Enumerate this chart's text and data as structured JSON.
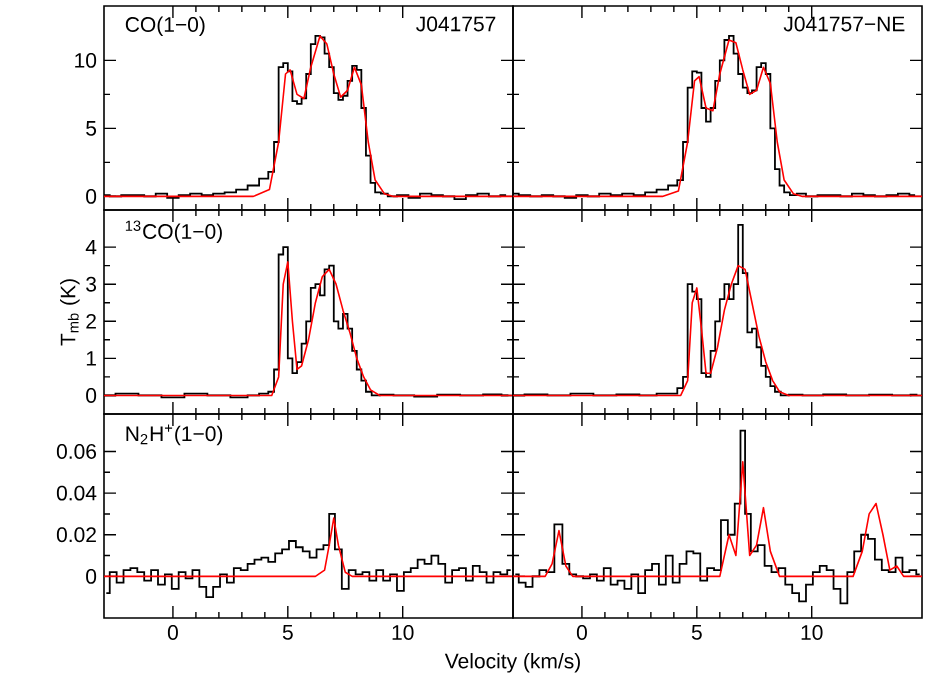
{
  "chart_data": [
    {
      "type": "step",
      "title": "J041757",
      "annotations": [
        "CO(1−0)"
      ],
      "xlim": [
        -3,
        14.8
      ],
      "xticks": [
        0,
        5,
        10
      ],
      "ylim": [
        -1,
        14
      ],
      "yticks": [
        0,
        5,
        10
      ],
      "tick_labels": "y",
      "series": [
        {
          "color": "#000000",
          "x": [
            -3,
            -2.5,
            -2,
            -1.5,
            -1,
            -0.5,
            0,
            0.5,
            1,
            1.5,
            2,
            2.5,
            3,
            3.5,
            4,
            4.3,
            4.5,
            4.7,
            4.9,
            5.1,
            5.3,
            5.5,
            5.7,
            5.9,
            6.1,
            6.3,
            6.5,
            6.7,
            6.9,
            7.1,
            7.3,
            7.5,
            7.7,
            7.9,
            8.1,
            8.3,
            8.5,
            8.7,
            8.9,
            9.2,
            9.5,
            10,
            10.5,
            11,
            11.5,
            12,
            12.5,
            13,
            13.5,
            14,
            14.5
          ],
          "values": [
            0.1,
            0,
            0.1,
            0.1,
            0,
            0.2,
            -0.1,
            0.1,
            0.2,
            0.1,
            0.2,
            0.3,
            0.5,
            0.8,
            1.3,
            1.8,
            4,
            9.5,
            9.8,
            9.2,
            7,
            6.8,
            7.2,
            9,
            11.2,
            11.8,
            11.7,
            10.5,
            9.5,
            7.6,
            7.1,
            7.4,
            8.5,
            9.6,
            9.3,
            6.5,
            3,
            1,
            0.3,
            0.2,
            0,
            0.1,
            -0.1,
            0.2,
            0.1,
            0,
            -0.2,
            0.1,
            0.2,
            0,
            0.1
          ]
        },
        {
          "type": "line",
          "color": "#ff0000",
          "x": [
            -3,
            3.5,
            4.2,
            4.6,
            4.9,
            5.1,
            5.4,
            5.7,
            6.0,
            6.4,
            6.7,
            7.0,
            7.3,
            7.6,
            7.9,
            8.2,
            8.5,
            8.8,
            9.2,
            9.6,
            14.8
          ],
          "values": [
            0,
            0,
            0.5,
            4,
            9,
            9.3,
            7.5,
            7.2,
            9.5,
            11.8,
            11.2,
            9,
            7.3,
            7.8,
            9.5,
            8.2,
            4,
            1.2,
            0.2,
            0,
            0
          ]
        }
      ]
    },
    {
      "type": "step",
      "title": "J041757−NE",
      "xlim": [
        -3,
        14.8
      ],
      "xticks": [
        0,
        5,
        10
      ],
      "ylim": [
        -1,
        14
      ],
      "yticks": [
        0,
        5,
        10
      ],
      "tick_labels": false,
      "series": [
        {
          "color": "#000000",
          "x": [
            -3,
            -2.5,
            -2,
            -1.5,
            -1,
            -0.5,
            0,
            0.5,
            1,
            1.5,
            2,
            2.5,
            3,
            3.5,
            4,
            4.3,
            4.5,
            4.7,
            4.9,
            5.1,
            5.3,
            5.5,
            5.7,
            5.9,
            6.1,
            6.3,
            6.5,
            6.7,
            6.9,
            7.1,
            7.3,
            7.5,
            7.7,
            7.9,
            8.1,
            8.3,
            8.5,
            8.7,
            8.9,
            9.2,
            9.5,
            10,
            10.5,
            11,
            11.5,
            12,
            12.5,
            13,
            13.5,
            14,
            14.5
          ],
          "values": [
            0.2,
            0.1,
            0,
            0.1,
            0,
            -0.1,
            0.1,
            0,
            0.2,
            0.1,
            0.2,
            0.1,
            0.3,
            0.5,
            0.8,
            1.2,
            4,
            8,
            9.2,
            9.1,
            6.5,
            5.5,
            6.5,
            8.5,
            10,
            11.5,
            11.8,
            10.5,
            9,
            8,
            7.6,
            7.8,
            9.5,
            9.8,
            9,
            5,
            2,
            0.8,
            0.3,
            0.1,
            0.2,
            0,
            0.1,
            0.1,
            0,
            0.2,
            0.1,
            0,
            0.1,
            0.2,
            0.1
          ]
        },
        {
          "type": "line",
          "color": "#ff0000",
          "x": [
            -3,
            3.5,
            4.2,
            4.6,
            4.9,
            5.1,
            5.4,
            5.7,
            6.0,
            6.4,
            6.7,
            7.0,
            7.3,
            7.6,
            7.9,
            8.2,
            8.5,
            8.8,
            9.2,
            9.6,
            14.8
          ],
          "values": [
            0,
            0,
            0.4,
            4,
            8.5,
            8.8,
            6.5,
            6.3,
            9,
            11.5,
            11.3,
            9.3,
            7.5,
            7.8,
            9.5,
            8.3,
            4,
            1.2,
            0.2,
            0,
            0
          ]
        }
      ]
    },
    {
      "type": "step",
      "annotations": [
        "$^{13}$CO(1−0)"
      ],
      "ylabel": "T$_{mb}$ (K)",
      "xlim": [
        -3,
        14.8
      ],
      "xticks": [
        0,
        5,
        10
      ],
      "ylim": [
        -0.5,
        5
      ],
      "yticks": [
        0,
        1,
        2,
        3,
        4
      ],
      "tick_labels": "y",
      "series": [
        {
          "color": "#000000",
          "x": [
            -3,
            -2,
            -1,
            0,
            1,
            2,
            3,
            3.5,
            4,
            4.3,
            4.5,
            4.7,
            4.9,
            5.1,
            5.3,
            5.5,
            5.7,
            5.9,
            6.1,
            6.3,
            6.5,
            6.7,
            6.9,
            7.1,
            7.3,
            7.5,
            7.7,
            7.9,
            8.1,
            8.3,
            8.5,
            8.8,
            9.2,
            10,
            11,
            12,
            13,
            14,
            14.6
          ],
          "values": [
            0,
            0.05,
            0,
            -0.05,
            0.05,
            0,
            -0.05,
            0,
            0.05,
            0.1,
            0.7,
            3.8,
            4,
            1,
            0.6,
            0.9,
            1.4,
            2,
            2.9,
            3,
            2.7,
            3.4,
            3.5,
            2,
            1.8,
            2.2,
            1.8,
            1.2,
            0.7,
            0.4,
            0.1,
            0,
            0.02,
            0,
            -0.03,
            0.02,
            0,
            0.03,
            0
          ]
        },
        {
          "type": "line",
          "color": "#ff0000",
          "x": [
            -3,
            4.3,
            4.6,
            4.8,
            5.0,
            5.2,
            5.4,
            5.6,
            5.9,
            6.2,
            6.5,
            6.8,
            7.1,
            7.4,
            7.7,
            8.0,
            8.3,
            8.6,
            9.0,
            14.8
          ],
          "values": [
            0,
            0,
            0.5,
            3,
            3.6,
            2,
            0.7,
            0.8,
            1.5,
            2.5,
            3.2,
            3.4,
            3.0,
            2.3,
            1.7,
            1.0,
            0.5,
            0.15,
            0,
            0
          ]
        }
      ]
    },
    {
      "type": "step",
      "xlim": [
        -3,
        14.8
      ],
      "xticks": [
        0,
        5,
        10
      ],
      "ylim": [
        -0.5,
        5
      ],
      "yticks": [
        0,
        1,
        2,
        3,
        4
      ],
      "tick_labels": false,
      "series": [
        {
          "color": "#000000",
          "x": [
            -3,
            -2,
            -1,
            0,
            1,
            2,
            3,
            3.5,
            4,
            4.3,
            4.5,
            4.7,
            4.9,
            5.1,
            5.3,
            5.5,
            5.7,
            5.9,
            6.1,
            6.3,
            6.5,
            6.7,
            6.9,
            7.1,
            7.3,
            7.5,
            7.7,
            7.9,
            8.1,
            8.3,
            8.5,
            8.8,
            9.2,
            10,
            11,
            12,
            13,
            14,
            14.6
          ],
          "values": [
            0,
            0.03,
            0,
            0.05,
            0,
            0.03,
            0,
            0.05,
            0.05,
            0.2,
            0.5,
            3,
            2.8,
            2.6,
            0.6,
            0.5,
            1.2,
            2,
            2.6,
            3,
            2.6,
            3,
            4.6,
            3.3,
            1.7,
            1.8,
            1.3,
            0.8,
            0.5,
            0.25,
            0.1,
            0,
            0.02,
            0,
            0.03,
            0,
            0.02,
            0,
            0.02
          ]
        },
        {
          "type": "line",
          "color": "#ff0000",
          "x": [
            -3,
            4.3,
            4.6,
            4.8,
            5.0,
            5.2,
            5.4,
            5.6,
            5.9,
            6.2,
            6.5,
            6.8,
            7.1,
            7.4,
            7.7,
            8.0,
            8.3,
            8.6,
            9.0,
            14.8
          ],
          "values": [
            0,
            0,
            0.4,
            2.5,
            2.9,
            1.8,
            0.6,
            0.6,
            1.3,
            2.3,
            3.0,
            3.5,
            3.4,
            2.5,
            1.6,
            0.9,
            0.4,
            0.1,
            0,
            0
          ]
        }
      ]
    },
    {
      "type": "step",
      "annotations": [
        "N$_{2}$H$^{+}$(1−0)"
      ],
      "xlabel": "Velocity (km/s)",
      "xlim": [
        -3,
        14.8
      ],
      "xticks": [
        0,
        5,
        10
      ],
      "ylim": [
        -0.02,
        0.078
      ],
      "yticks": [
        0,
        0.02,
        0.04,
        0.06
      ],
      "series": [
        {
          "color": "#000000",
          "x": [
            -2.9,
            -2.6,
            -2.3,
            -2.0,
            -1.7,
            -1.4,
            -1.1,
            -0.8,
            -0.5,
            -0.2,
            0.1,
            0.4,
            0.7,
            1.0,
            1.3,
            1.6,
            1.9,
            2.2,
            2.5,
            2.8,
            3.1,
            3.4,
            3.7,
            4.0,
            4.3,
            4.6,
            4.9,
            5.2,
            5.5,
            5.8,
            6.1,
            6.4,
            6.7,
            6.9,
            7.2,
            7.5,
            7.8,
            8.1,
            8.4,
            8.7,
            9.0,
            9.3,
            9.6,
            9.9,
            10.2,
            10.5,
            10.8,
            11.1,
            11.4,
            11.7,
            12.0,
            12.3,
            12.6,
            12.9,
            13.2,
            13.5,
            13.8,
            14.1,
            14.4,
            14.7
          ],
          "values": [
            -0.008,
            0.002,
            -0.003,
            0.003,
            0.004,
            0.002,
            -0.002,
            0.003,
            -0.004,
            0.001,
            -0.006,
            0.002,
            -0.001,
            0.003,
            -0.005,
            -0.01,
            -0.005,
            0.001,
            -0.003,
            0.004,
            0.003,
            0.006,
            0.008,
            0.009,
            0.007,
            0.011,
            0.013,
            0.017,
            0.014,
            0.012,
            0.009,
            0.013,
            0.015,
            0.03,
            0.013,
            -0.006,
            0.003,
            0.001,
            0.002,
            -0.002,
            0.003,
            -0.002,
            0.001,
            -0.007,
            0.002,
            0.004,
            0.008,
            0.006,
            0.01,
            0.006,
            -0.003,
            0.003,
            0.004,
            -0.002,
            0.005,
            0.002,
            -0.003,
            0.002,
            0.001,
            0.003
          ]
        },
        {
          "type": "line",
          "color": "#ff0000",
          "x": [
            -3,
            6.2,
            6.6,
            6.8,
            7.0,
            7.2,
            7.5,
            7.8,
            14.8
          ],
          "values": [
            0,
            0,
            0.003,
            0.015,
            0.028,
            0.015,
            0.002,
            0,
            0
          ]
        }
      ]
    },
    {
      "type": "step",
      "xlim": [
        -3,
        14.8
      ],
      "xticks": [
        0,
        5,
        10
      ],
      "ylim": [
        -0.02,
        0.078
      ],
      "yticks": [
        0,
        0.02,
        0.04,
        0.06
      ],
      "tick_labels": "x",
      "series": [
        {
          "color": "#000000",
          "x": [
            -2.9,
            -2.6,
            -2.3,
            -2.0,
            -1.7,
            -1.4,
            -1.0,
            -0.7,
            -0.4,
            -0.1,
            0.2,
            0.5,
            0.8,
            1.1,
            1.4,
            1.7,
            2.0,
            2.3,
            2.6,
            2.9,
            3.2,
            3.5,
            3.8,
            4.1,
            4.4,
            4.7,
            5.0,
            5.3,
            5.6,
            5.9,
            6.2,
            6.5,
            6.8,
            7.0,
            7.2,
            7.5,
            7.8,
            8.1,
            8.4,
            8.7,
            9.0,
            9.3,
            9.6,
            9.9,
            10.2,
            10.5,
            10.8,
            11.1,
            11.4,
            11.7,
            12.0,
            12.3,
            12.6,
            12.9,
            13.2,
            13.5,
            13.8,
            14.1,
            14.4,
            14.7
          ],
          "values": [
            0.001,
            -0.003,
            -0.005,
            0,
            0.003,
            0.002,
            0.025,
            0.006,
            0.001,
            0,
            -0.001,
            0.001,
            -0.002,
            0.004,
            -0.004,
            -0.002,
            -0.006,
            0.001,
            -0.008,
            0.003,
            0.006,
            -0.004,
            0.01,
            -0.003,
            0.006,
            0.012,
            0.011,
            -0.002,
            0.004,
            0.003,
            0.027,
            0.02,
            0.035,
            0.07,
            0.03,
            0.012,
            0.015,
            0.005,
            0.002,
            0.004,
            -0.004,
            -0.008,
            -0.012,
            -0.004,
            0.002,
            0.005,
            0.003,
            -0.006,
            -0.013,
            0.002,
            0.012,
            0.02,
            0.018,
            0.008,
            0.003,
            0.002,
            0.009,
            0.002,
            0.003,
            0.001
          ]
        },
        {
          "type": "line",
          "color": "#ff0000",
          "x": [
            -3,
            -1.6,
            -1.3,
            -1.0,
            -0.7,
            -0.4,
            6.0,
            6.4,
            6.7,
            7.0,
            7.3,
            7.6,
            7.9,
            8.2,
            8.6,
            11.8,
            12.2,
            12.5,
            12.8,
            13.1,
            13.4,
            13.7,
            14.0,
            14.8
          ],
          "values": [
            0,
            0,
            0.006,
            0.022,
            0.005,
            0,
            0,
            0.02,
            0.01,
            0.055,
            0.01,
            0.015,
            0.033,
            0.012,
            0,
            0,
            0.012,
            0.03,
            0.035,
            0.02,
            0.003,
            0.005,
            0,
            0
          ]
        }
      ]
    }
  ]
}
